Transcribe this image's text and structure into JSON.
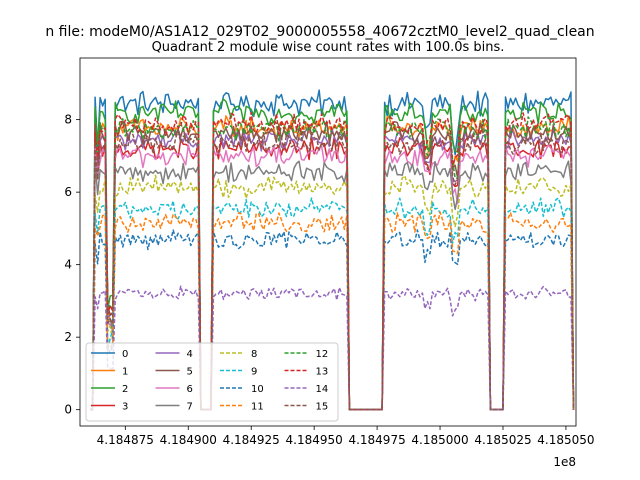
{
  "chart_data": {
    "type": "line",
    "suptitle": "n file: modeM0/AS1A12_029T02_9000005558_40672cztM0_level2_quad_clean",
    "title": "Quadrant 2 module wise count rates with 100.0s bins.",
    "xlabel": "",
    "ylabel": "",
    "x_offset_label": "1e8",
    "xlim": [
      4.184857,
      4.185054
    ],
    "ylim": [
      -0.45,
      9.7
    ],
    "x_ticks": [
      4.184875,
      4.1849,
      4.184925,
      4.18495,
      4.184975,
      4.185,
      4.185025,
      4.18505
    ],
    "x_tick_labels": [
      "4.184875",
      "4.184900",
      "4.184925",
      "4.184950",
      "4.184975",
      "4.185000",
      "4.185025",
      "4.185050"
    ],
    "y_ticks": [
      0,
      2,
      4,
      6,
      8
    ],
    "y_tick_labels": [
      "0",
      "2",
      "4",
      "6",
      "8"
    ],
    "grid": false,
    "legend_position": "lower-left",
    "legend_columns": 4,
    "active_segments": [
      [
        4.184863,
        4.184904
      ],
      [
        4.18491,
        4.184963
      ],
      [
        4.184978,
        4.185019
      ],
      [
        4.185026,
        4.185052
      ]
    ],
    "dips": [
      {
        "x": 4.184869,
        "factor": 0.35,
        "width": 1.2e-06
      },
      {
        "x": 4.184864,
        "factor": 0.88,
        "width": 8e-07
      },
      {
        "x": 4.185006,
        "factor": 0.86,
        "width": 1.5e-06
      },
      {
        "x": 4.184995,
        "factor": 0.92,
        "width": 1.2e-06
      }
    ],
    "series": [
      {
        "name": "0",
        "color": "#1f77b4",
        "dash": "solid",
        "level": 8.45,
        "noise": 0.28
      },
      {
        "name": "1",
        "color": "#ff7f0e",
        "dash": "solid",
        "level": 7.75,
        "noise": 0.28
      },
      {
        "name": "2",
        "color": "#2ca02c",
        "dash": "solid",
        "level": 8.2,
        "noise": 0.26
      },
      {
        "name": "3",
        "color": "#d62728",
        "dash": "solid",
        "level": 7.2,
        "noise": 0.25
      },
      {
        "name": "4",
        "color": "#9467bd",
        "dash": "solid",
        "level": 7.45,
        "noise": 0.25
      },
      {
        "name": "5",
        "color": "#8c564b",
        "dash": "solid",
        "level": 7.65,
        "noise": 0.25
      },
      {
        "name": "6",
        "color": "#e377c2",
        "dash": "solid",
        "level": 7.0,
        "noise": 0.25
      },
      {
        "name": "7",
        "color": "#7f7f7f",
        "dash": "solid",
        "level": 6.55,
        "noise": 0.25
      },
      {
        "name": "8",
        "color": "#bcbd22",
        "dash": "dashed",
        "level": 6.15,
        "noise": 0.24
      },
      {
        "name": "9",
        "color": "#17becf",
        "dash": "dashed",
        "level": 5.55,
        "noise": 0.23
      },
      {
        "name": "10",
        "color": "#1f77b4",
        "dash": "dashed",
        "level": 4.7,
        "noise": 0.22
      },
      {
        "name": "11",
        "color": "#ff7f0e",
        "dash": "dashed",
        "level": 5.15,
        "noise": 0.22
      },
      {
        "name": "12",
        "color": "#2ca02c",
        "dash": "dashed",
        "level": 7.75,
        "noise": 0.25
      },
      {
        "name": "13",
        "color": "#d62728",
        "dash": "dashed",
        "level": 7.85,
        "noise": 0.25
      },
      {
        "name": "14",
        "color": "#9467bd",
        "dash": "dashed",
        "level": 3.2,
        "noise": 0.15
      },
      {
        "name": "15",
        "color": "#8c564b",
        "dash": "dashed",
        "level": 7.35,
        "noise": 0.25
      }
    ]
  }
}
